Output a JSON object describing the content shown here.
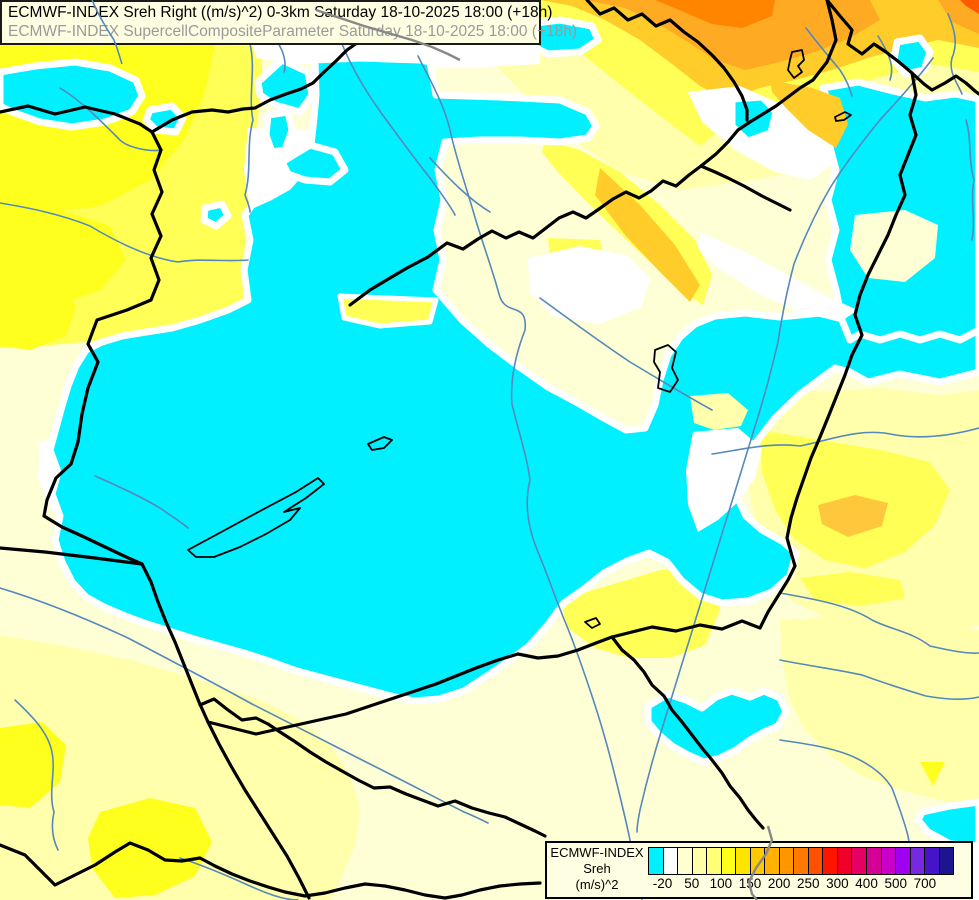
{
  "title_box": {
    "line1": "ECMWF-INDEX Sreh Right ((m/s)^2) 0-3km Saturday 18-10-2025 18:00 (+18h)",
    "line2": "ECMWF-INDEX SupercellCompositeParameter Saturday 18-10-2025 18:00 (+18h)"
  },
  "legend": {
    "title": "ECMWF-INDEX",
    "parameter": "Sreh",
    "units": "(m/s)^2",
    "tick_labels": [
      "-20",
      "50",
      "100",
      "150",
      "200",
      "250",
      "300",
      "400",
      "500",
      "700"
    ],
    "tick_boundary_indices": [
      1,
      3,
      5,
      7,
      9,
      11,
      13,
      15,
      17,
      19
    ],
    "cell_count": 21,
    "cell_colors": [
      "#00F0FF",
      "#FFFFFF",
      "#FFFFD2",
      "#FFFFA8",
      "#FFFF78",
      "#FFFF1E",
      "#FFE400",
      "#FFC800",
      "#FFB000",
      "#FF9600",
      "#FF7800",
      "#FF5000",
      "#FF1400",
      "#F00028",
      "#E60064",
      "#D60096",
      "#C800C8",
      "#A000F0",
      "#7828E0",
      "#4614C8",
      "#1E1490"
    ]
  },
  "palette": {
    "background_cream": "#FFFFD6",
    "pale_yellow": "#FFFFAC",
    "yellow": "#FFFF55",
    "bright_yellow": "#FFFF1E",
    "gold": "#FFCC29",
    "amber": "#FFC83C",
    "orange": "#FFAA23",
    "deep_orange": "#FF8400",
    "red_orange": "#FF5A00",
    "cyan": "#00F0FF",
    "white": "#FFFFFF",
    "river_blue": "#5588BB",
    "border_black": "#000000",
    "border_gray": "#888888",
    "title_text": "#000000",
    "subtitle_text": "#9A9A9A",
    "box_background": "#FEFEE2",
    "box_border": "#1A1A1A"
  }
}
